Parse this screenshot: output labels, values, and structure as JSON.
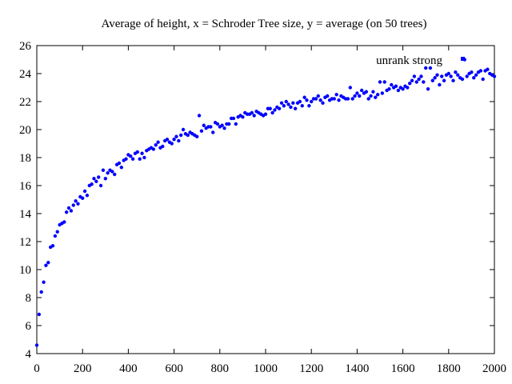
{
  "chart_data": {
    "type": "scatter",
    "title": "Average of height, x = Schroder Tree size, y = average (on 50 trees)",
    "xlabel": "",
    "ylabel": "",
    "xlim": [
      0,
      2000
    ],
    "ylim": [
      4,
      26
    ],
    "xticks": [
      0,
      200,
      400,
      600,
      800,
      1000,
      1200,
      1400,
      1600,
      1800,
      2000
    ],
    "yticks": [
      4,
      6,
      8,
      10,
      12,
      14,
      16,
      18,
      20,
      22,
      24,
      26
    ],
    "grid": false,
    "legend_position": "top-right",
    "series": [
      {
        "name": "unrank strong",
        "color": "#0000ff",
        "x": [
          0,
          10,
          20,
          30,
          40,
          50,
          60,
          70,
          80,
          90,
          100,
          110,
          120,
          130,
          140,
          150,
          160,
          170,
          180,
          190,
          200,
          210,
          220,
          230,
          240,
          250,
          260,
          270,
          280,
          290,
          300,
          310,
          320,
          330,
          340,
          350,
          360,
          370,
          380,
          390,
          400,
          410,
          420,
          430,
          440,
          450,
          460,
          470,
          480,
          490,
          500,
          510,
          520,
          530,
          540,
          550,
          560,
          570,
          580,
          590,
          600,
          610,
          620,
          630,
          640,
          650,
          660,
          670,
          680,
          690,
          700,
          710,
          720,
          730,
          740,
          750,
          760,
          770,
          780,
          790,
          800,
          810,
          820,
          830,
          840,
          850,
          860,
          870,
          880,
          890,
          900,
          910,
          920,
          930,
          940,
          950,
          960,
          970,
          980,
          990,
          1000,
          1010,
          1020,
          1030,
          1040,
          1050,
          1060,
          1070,
          1080,
          1090,
          1100,
          1110,
          1120,
          1130,
          1140,
          1150,
          1160,
          1170,
          1180,
          1190,
          1200,
          1210,
          1220,
          1230,
          1240,
          1250,
          1260,
          1270,
          1280,
          1290,
          1300,
          1310,
          1320,
          1330,
          1340,
          1350,
          1360,
          1370,
          1380,
          1390,
          1400,
          1410,
          1420,
          1430,
          1440,
          1450,
          1460,
          1470,
          1480,
          1490,
          1500,
          1510,
          1520,
          1530,
          1540,
          1550,
          1560,
          1570,
          1580,
          1590,
          1600,
          1610,
          1620,
          1630,
          1640,
          1650,
          1660,
          1670,
          1680,
          1690,
          1700,
          1710,
          1720,
          1730,
          1740,
          1750,
          1760,
          1770,
          1780,
          1790,
          1800,
          1810,
          1820,
          1830,
          1840,
          1850,
          1860,
          1870,
          1880,
          1890,
          1900,
          1910,
          1920,
          1930,
          1940,
          1950,
          1960,
          1970,
          1980,
          1990,
          2000
        ],
        "y": [
          4.6,
          6.8,
          8.4,
          9.1,
          10.3,
          10.5,
          11.6,
          11.7,
          12.4,
          12.7,
          13.2,
          13.3,
          13.4,
          14.1,
          14.4,
          14.2,
          14.6,
          14.9,
          14.7,
          15.2,
          15.1,
          15.6,
          15.3,
          16.0,
          16.1,
          16.5,
          16.3,
          16.6,
          16.0,
          17.1,
          16.5,
          16.9,
          17.1,
          17.0,
          16.8,
          17.5,
          17.6,
          17.3,
          17.8,
          17.9,
          18.2,
          18.1,
          17.9,
          18.3,
          18.4,
          17.9,
          18.3,
          18.0,
          18.5,
          18.6,
          18.7,
          18.6,
          18.9,
          19.1,
          18.7,
          18.8,
          19.2,
          19.3,
          19.1,
          19.0,
          19.3,
          19.5,
          19.2,
          19.6,
          20.0,
          19.7,
          19.6,
          19.8,
          19.7,
          19.6,
          19.5,
          21.0,
          19.9,
          20.3,
          20.1,
          20.2,
          20.2,
          19.8,
          20.5,
          20.4,
          20.2,
          20.3,
          20.1,
          20.4,
          20.4,
          20.8,
          20.8,
          20.4,
          20.9,
          21.0,
          20.9,
          21.2,
          21.1,
          21.1,
          21.2,
          21.0,
          21.3,
          21.2,
          21.1,
          21.0,
          21.1,
          21.5,
          21.5,
          21.2,
          21.4,
          21.6,
          21.5,
          21.9,
          21.7,
          22.0,
          21.8,
          21.6,
          21.9,
          21.5,
          21.9,
          22.0,
          21.7,
          22.3,
          22.1,
          21.7,
          22.0,
          22.2,
          22.2,
          22.4,
          22.1,
          21.9,
          22.3,
          22.4,
          22.1,
          22.2,
          22.2,
          22.5,
          22.1,
          22.4,
          22.3,
          22.2,
          22.2,
          23.0,
          22.2,
          22.4,
          22.6,
          22.4,
          22.8,
          22.6,
          22.7,
          22.2,
          22.4,
          22.7,
          22.3,
          22.5,
          23.4,
          22.6,
          23.4,
          22.8,
          22.9,
          23.2,
          23.0,
          23.1,
          22.8,
          23.0,
          22.9,
          23.1,
          23.0,
          23.3,
          23.5,
          23.8,
          23.4,
          23.6,
          23.8,
          23.4,
          24.4,
          22.9,
          24.4,
          23.5,
          23.7,
          23.9,
          23.2,
          23.8,
          23.5,
          23.9,
          24.0,
          23.8,
          23.5,
          24.1,
          23.9,
          23.7,
          23.6,
          25.0,
          23.8,
          24.0,
          24.1,
          23.7,
          23.9,
          24.1,
          24.2,
          23.6,
          24.2,
          24.3,
          24.0,
          23.9,
          23.8
        ]
      }
    ]
  }
}
